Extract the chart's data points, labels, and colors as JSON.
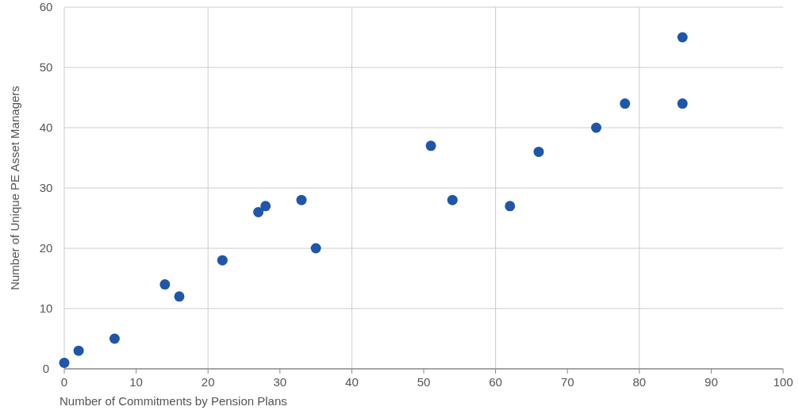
{
  "chart_data": {
    "type": "scatter",
    "xlabel": "Number of Commitments by Pension Plans",
    "ylabel": "Number of Unique PE Asset Managers",
    "x": [
      0,
      2,
      7,
      14,
      16,
      22,
      27,
      28,
      33,
      35,
      51,
      54,
      62,
      66,
      74,
      78,
      86,
      86
    ],
    "series": [
      {
        "color": "#1f56a8",
        "values": [
          1,
          3,
          5,
          14,
          12,
          18,
          26,
          27,
          28,
          20,
          37,
          28,
          27,
          36,
          40,
          44,
          55,
          44
        ]
      }
    ],
    "xlim": [
      0,
      100
    ],
    "ylim": [
      0,
      60
    ],
    "xticks": [
      0,
      10,
      20,
      30,
      40,
      50,
      60,
      70,
      80,
      90,
      100
    ],
    "yticks": [
      0,
      10,
      20,
      30,
      40,
      50,
      60
    ],
    "grid": true,
    "marker": "circle"
  }
}
